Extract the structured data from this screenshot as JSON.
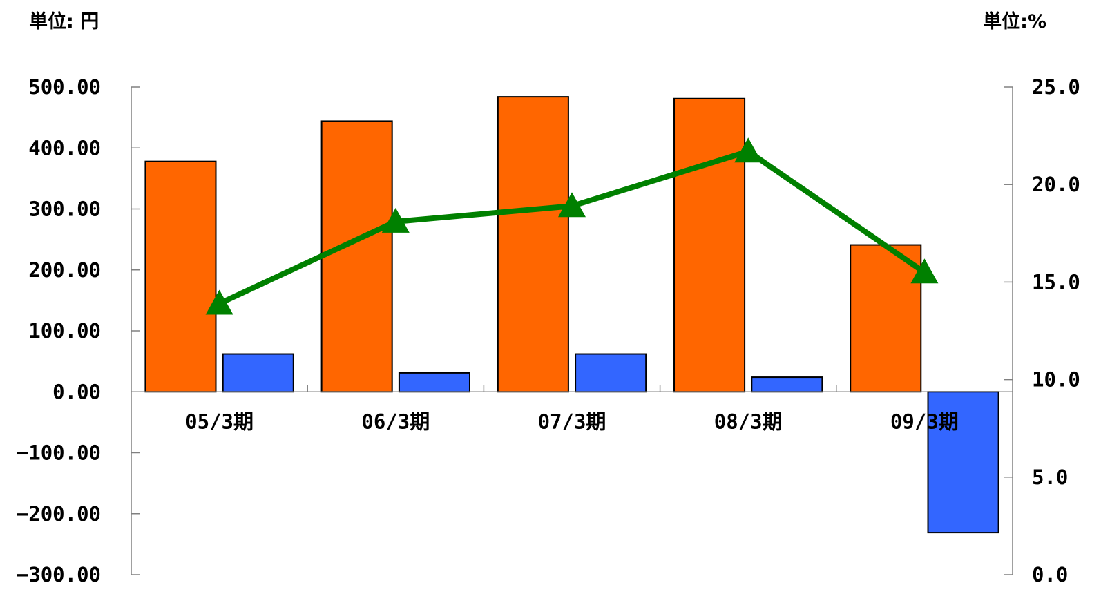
{
  "chart_data": {
    "type": "bar",
    "left_unit": "単位: 円",
    "right_unit": "単位:%",
    "categories": [
      "05/3期",
      "06/3期",
      "07/3期",
      "08/3期",
      "09/3期"
    ],
    "series": [
      {
        "type": "bar",
        "axis": "left",
        "color": "#FF6600",
        "values": [
          378,
          444,
          484,
          481,
          241
        ]
      },
      {
        "type": "bar",
        "axis": "left",
        "color": "#3366FF",
        "values": [
          62,
          31,
          62,
          24,
          -231
        ]
      },
      {
        "type": "line",
        "axis": "right",
        "color": "#008000",
        "marker": "triangle",
        "values": [
          13.9,
          18.1,
          18.9,
          21.7,
          15.5
        ]
      }
    ],
    "left_axis": {
      "ylim": [
        -300,
        500
      ],
      "ticks": [
        "500.00",
        "400.00",
        "300.00",
        "200.00",
        "100.00",
        "0.00",
        "−100.00",
        "−200.00",
        "−300.00"
      ]
    },
    "right_axis": {
      "ylim": [
        0,
        25
      ],
      "ticks": [
        "25.0",
        "20.0",
        "15.0",
        "10.0",
        "5.0",
        "0.0"
      ]
    },
    "grid": false,
    "legend": "none"
  }
}
